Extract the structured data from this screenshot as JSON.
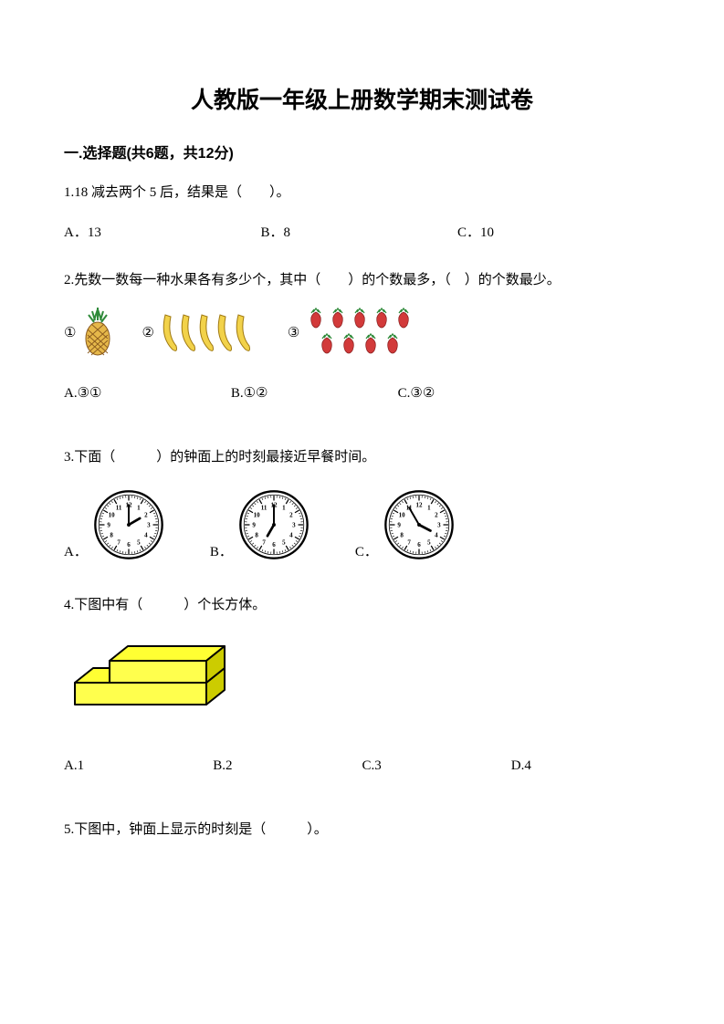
{
  "title": "人教版一年级上册数学期末测试卷",
  "section1": {
    "heading": "一.选择题(共6题，共12分)"
  },
  "q1": {
    "text": "1.18 减去两个 5 后，结果是（　　）。",
    "A": "A．13",
    "B": "B．8",
    "C": "C．10"
  },
  "q2": {
    "text": "2.先数一数每一种水果各有多少个，其中（　　）的个数最多，（　）的个数最少。",
    "label1": "①",
    "label2": "②",
    "label3": "③",
    "A": "A.③①",
    "B": "B.①②",
    "C": "C.③②",
    "fruit_colors": {
      "pineapple_body": "#e6b84a",
      "pineapple_lines": "#8a5a1e",
      "pineapple_leaf": "#2f8a3a",
      "banana": "#f2d24a",
      "banana_outline": "#a07a12",
      "strawberry": "#d23a3a",
      "strawberry_leaf": "#2f8a3a"
    }
  },
  "q3": {
    "text": "3.下面（　　　）的钟面上的时刻最接近早餐时间。",
    "A": "A．",
    "B": "B．",
    "C": "C．",
    "clocks": {
      "A": {
        "hour": 2,
        "minute": 0
      },
      "B": {
        "hour": 7,
        "minute": 0
      },
      "C": {
        "hour": 3,
        "minute": 55
      }
    },
    "clock_style": {
      "stroke": "#000000",
      "fill": "#ffffff",
      "size": 78
    }
  },
  "q4": {
    "text": "4.下图中有（　　　）个长方体。",
    "A": "A.1",
    "B": "B.2",
    "C": "C.3",
    "D": "D.4",
    "cuboid_colors": {
      "top": "#ffff33",
      "front": "#ffff4d",
      "side": "#cccc00",
      "stroke": "#000000"
    }
  },
  "q5": {
    "text": "5.下图中，钟面上显示的时刻是（　　　）。"
  }
}
